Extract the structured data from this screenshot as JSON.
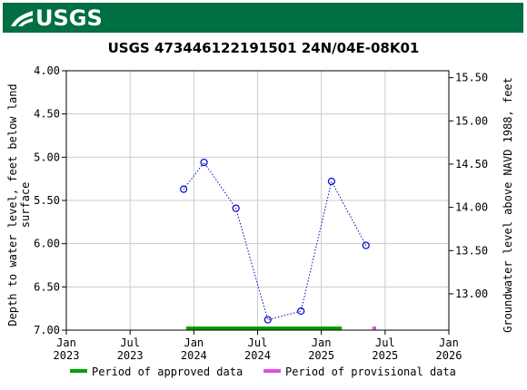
{
  "header": {
    "logo_text": "USGS"
  },
  "chart_data": {
    "type": "scatter",
    "title": "USGS 473446122191501 24N/04E-08K01",
    "ylabel_left": "Depth to water level, feet below land surface",
    "ylabel_right": "Groundwater level above NAVD 1988, feet",
    "ylim_left": [
      4.0,
      7.0
    ],
    "ylim_right_top": 15.58,
    "yticks_left": [
      "4.00",
      "4.50",
      "5.00",
      "5.50",
      "6.00",
      "6.50",
      "7.00"
    ],
    "yticks_right": [
      "15.50",
      "15.00",
      "14.50",
      "14.00",
      "13.50",
      "13.00"
    ],
    "xticks": [
      {
        "month": "Jan",
        "year": "2023",
        "t": 0.0
      },
      {
        "month": "Jul",
        "year": "2023",
        "t": 0.5
      },
      {
        "month": "Jan",
        "year": "2024",
        "t": 1.0
      },
      {
        "month": "Jul",
        "year": "2024",
        "t": 1.5
      },
      {
        "month": "Jan",
        "year": "2025",
        "t": 2.0
      },
      {
        "month": "Jul",
        "year": "2025",
        "t": 2.5
      },
      {
        "month": "Jan",
        "year": "2026",
        "t": 3.0
      }
    ],
    "series": [
      {
        "name": "Depth to water level",
        "points": [
          {
            "date": "2023-12-01",
            "t": 0.92,
            "y": 5.37
          },
          {
            "date": "2024-02-01",
            "t": 1.08,
            "y": 5.06
          },
          {
            "date": "2024-05-01",
            "t": 1.33,
            "y": 5.59
          },
          {
            "date": "2024-08-01",
            "t": 1.58,
            "y": 6.88
          },
          {
            "date": "2024-11-01",
            "t": 1.84,
            "y": 6.78
          },
          {
            "date": "2025-02-01",
            "t": 2.08,
            "y": 5.28
          },
          {
            "date": "2025-05-01",
            "t": 2.35,
            "y": 6.02
          }
        ]
      }
    ],
    "approved_period": {
      "start": 0.94,
      "end": 2.16
    },
    "provisional_period": {
      "start": 2.4,
      "end": 2.43
    },
    "grid": true,
    "legend": [
      {
        "label": "Period of approved data",
        "color": "#00a000"
      },
      {
        "label": "Period of provisional data",
        "color": "#e050e0"
      }
    ],
    "colors": {
      "points": "#0000cc",
      "line": "#0000cc",
      "grid": "#cccccc"
    }
  }
}
